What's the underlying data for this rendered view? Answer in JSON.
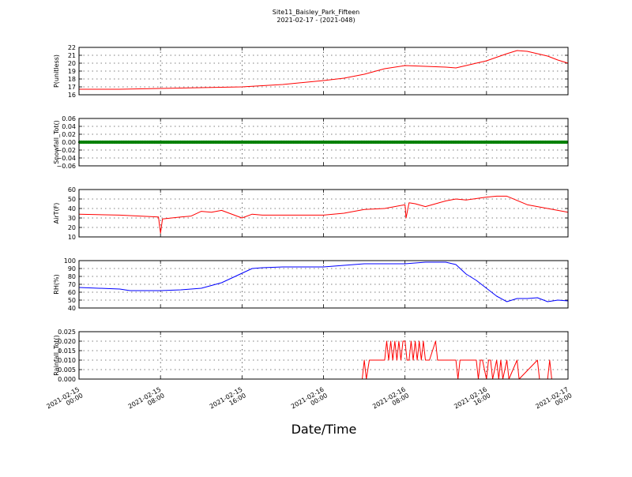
{
  "figure": {
    "title": "Site11_Baisley_Park_Fifteen",
    "subtitle": "2021-02-17 - (2021-048)",
    "xlabel": "Date/Time"
  },
  "chart_data": [
    {
      "type": "line",
      "ylabel": "P(unitless)",
      "ylim": [
        16,
        22
      ],
      "yticks": [
        "16",
        "17",
        "18",
        "19",
        "20",
        "21",
        "22"
      ],
      "color": "#ff0000",
      "grid": true,
      "x_hours": [
        0,
        4,
        8,
        12,
        16,
        20,
        24,
        26,
        28,
        30,
        32,
        34,
        36,
        37,
        38,
        40,
        42,
        43,
        44,
        45,
        46,
        47,
        48
      ],
      "values": [
        16.7,
        16.7,
        16.8,
        16.9,
        17.0,
        17.3,
        17.8,
        18.1,
        18.6,
        19.3,
        19.7,
        19.6,
        19.5,
        19.4,
        19.7,
        20.3,
        21.2,
        21.6,
        21.5,
        21.2,
        20.9,
        20.4,
        20.0
      ]
    },
    {
      "type": "scatter",
      "ylabel": "Snowfall_Tot()",
      "ylim": [
        -0.06,
        0.06
      ],
      "yticks": [
        "−0.06",
        "−0.04",
        "−0.02",
        "0.00",
        "0.02",
        "0.04",
        "0.06"
      ],
      "color": "#008000",
      "grid": true,
      "x_hours": [
        0,
        48
      ],
      "values": [
        0,
        0
      ]
    },
    {
      "type": "line",
      "ylabel": "AirT(F)",
      "ylim": [
        10,
        60
      ],
      "yticks": [
        "10",
        "20",
        "30",
        "40",
        "50",
        "60"
      ],
      "color": "#ff0000",
      "grid": true,
      "x_hours": [
        0,
        4,
        7.8,
        8,
        8.2,
        10,
        11,
        12,
        13,
        14,
        16,
        17,
        18,
        20,
        24,
        26,
        28,
        30,
        32,
        32.1,
        32.4,
        33,
        34,
        35,
        36,
        37,
        38,
        40,
        41,
        42,
        44,
        46,
        48
      ],
      "values": [
        34,
        33,
        31,
        14,
        29,
        31,
        32,
        37,
        36,
        38,
        30,
        34,
        33,
        33,
        33,
        35,
        39,
        40,
        44,
        30,
        46,
        45,
        42,
        45,
        48,
        50,
        49,
        52,
        53,
        53,
        44,
        40,
        36
      ]
    },
    {
      "type": "line",
      "ylabel": "RH(%)",
      "ylim": [
        40,
        100
      ],
      "yticks": [
        "40",
        "50",
        "60",
        "70",
        "80",
        "90",
        "100"
      ],
      "color": "#0000ff",
      "grid": true,
      "x_hours": [
        0,
        4,
        5,
        8,
        10,
        12,
        14,
        16,
        17,
        18,
        20,
        24,
        28,
        32,
        34,
        36,
        37,
        38,
        39,
        40,
        41,
        42,
        43,
        44,
        45,
        46,
        47,
        48
      ],
      "values": [
        66,
        64,
        62,
        62,
        63,
        65,
        72,
        84,
        90,
        91,
        92,
        92,
        96,
        96,
        98,
        98,
        95,
        83,
        75,
        65,
        55,
        48,
        52,
        52,
        53,
        48,
        50,
        49
      ]
    },
    {
      "type": "line",
      "ylabel": "Rainfall_Tot()",
      "ylim": [
        0,
        0.025
      ],
      "yticks": [
        "0.000",
        "0.005",
        "0.010",
        "0.015",
        "0.020",
        "0.025"
      ],
      "color": "#ff0000",
      "grid": true,
      "x_hours": [
        0,
        27.8,
        28,
        28.2,
        28.5,
        30,
        30.2,
        30.4,
        30.6,
        30.8,
        31,
        31.2,
        31.4,
        31.6,
        31.8,
        32,
        32.2,
        32.4,
        32.6,
        32.8,
        33,
        33.2,
        33.4,
        33.6,
        33.8,
        34,
        34.2,
        34.4,
        35,
        35.2,
        35.4,
        37,
        37.2,
        37.4,
        39,
        39.2,
        39.4,
        39.6,
        40,
        40.2,
        40.4,
        40.6,
        41,
        41.2,
        41.4,
        41.6,
        42,
        42.2,
        43,
        43.2,
        45,
        45.2,
        46,
        46.2,
        46.4,
        46.6,
        48
      ],
      "values": [
        0,
        0,
        0.01,
        0,
        0.01,
        0.01,
        0.02,
        0.01,
        0.02,
        0.01,
        0.02,
        0.01,
        0.02,
        0.01,
        0.02,
        0.02,
        0.01,
        0.01,
        0.02,
        0.01,
        0.02,
        0.01,
        0.02,
        0.01,
        0.02,
        0.01,
        0.01,
        0.01,
        0.02,
        0.01,
        0.01,
        0.01,
        0,
        0.01,
        0.01,
        0,
        0.01,
        0.01,
        0,
        0.01,
        0.01,
        0,
        0.01,
        0,
        0.01,
        0,
        0.01,
        0,
        0.01,
        0,
        0.01,
        0,
        0,
        0.01,
        0,
        0,
        0
      ]
    }
  ],
  "xaxis": {
    "range_hours": [
      0,
      48
    ],
    "ticks": [
      {
        "hours": 0,
        "label1": "2021-02-15",
        "label2": "00:00"
      },
      {
        "hours": 8,
        "label1": "2021-02-15",
        "label2": "08:00"
      },
      {
        "hours": 16,
        "label1": "2021-02-15",
        "label2": "16:00"
      },
      {
        "hours": 24,
        "label1": "2021-02-16",
        "label2": "00:00"
      },
      {
        "hours": 32,
        "label1": "2021-02-16",
        "label2": "08:00"
      },
      {
        "hours": 40,
        "label1": "2021-02-16",
        "label2": "16:00"
      },
      {
        "hours": 48,
        "label1": "2021-02-17",
        "label2": "00:00"
      }
    ]
  }
}
